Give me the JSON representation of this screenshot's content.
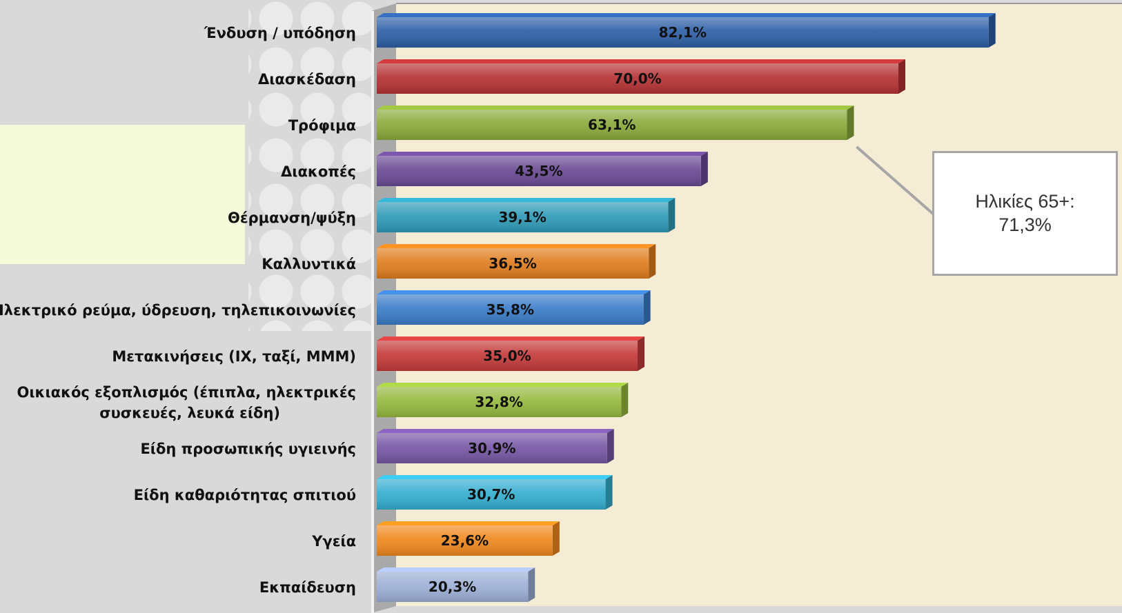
{
  "chart_data": {
    "type": "bar",
    "orientation": "horizontal",
    "categories": [
      "Ένδυση / υπόδηση",
      "Διασκέδαση",
      "Τρόφιμα",
      "Διακοπές",
      "Θέρμανση/ψύξη",
      "Καλλυντικά",
      "Ηλεκτρικό ρεύμα, ύδρευση, τηλεπικοινωνίες",
      "Μετακινήσεις (ΙΧ, ταξί, ΜΜΜ)",
      "Οικιακός εξοπλισμός (έπιπλα, ηλεκτρικές συσκευές, λευκά είδη)",
      "Είδη προσωπικής υγιεινής",
      "Είδη καθαριότητας σπιτιού",
      "Υγεία",
      "Εκπαίδευση"
    ],
    "label_lines": [
      [
        "Ένδυση / υπόδηση"
      ],
      [
        "Διασκέδαση"
      ],
      [
        "Τρόφιμα"
      ],
      [
        "Διακοπές"
      ],
      [
        "Θέρμανση/ψύξη"
      ],
      [
        "Καλλυντικά"
      ],
      [
        "Ηλεκτρικό ρεύμα, ύδρευση, τηλεπικοινωνίες"
      ],
      [
        "Μετακινήσεις (ΙΧ, ταξί, ΜΜΜ)"
      ],
      [
        "Οικιακός εξοπλισμός (έπιπλα, ηλεκτρικές",
        "συσκευές, λευκά είδη)"
      ],
      [
        "Είδη προσωπικής υγιεινής"
      ],
      [
        "Είδη καθαριότητας σπιτιού"
      ],
      [
        "Υγεία"
      ],
      [
        "Εκπαίδευση"
      ]
    ],
    "values": [
      82.1,
      70.0,
      63.1,
      43.5,
      39.1,
      36.5,
      35.8,
      35.0,
      32.8,
      30.9,
      30.7,
      23.6,
      20.3
    ],
    "value_labels": [
      "82,1%",
      "70,0%",
      "63,1%",
      "43,5%",
      "39,1%",
      "36,5%",
      "35,8%",
      "35,0%",
      "32,8%",
      "30,9%",
      "30,7%",
      "23,6%",
      "20,3%"
    ],
    "bar_colors": [
      "#2e5fa6",
      "#b53234",
      "#8aaa3a",
      "#6a4a94",
      "#2f9bb8",
      "#e07d1f",
      "#3a7cc8",
      "#c43a3a",
      "#96b93e",
      "#7656a4",
      "#34aed0",
      "#f0881d",
      "#9dafd6"
    ],
    "xlim": [
      0,
      100
    ],
    "grid": false,
    "legend": "none",
    "annotations": [
      {
        "text_lines": [
          "Ηλικίες 65+:",
          "71,3%"
        ],
        "target_category": "Τρόφιμα"
      }
    ],
    "plot_background": "#f4ecd5"
  }
}
